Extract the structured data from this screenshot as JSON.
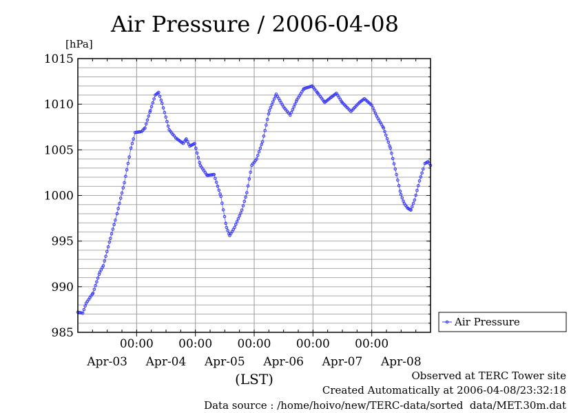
{
  "chart_data": {
    "type": "line",
    "title": "Air Pressure / 2006-04-08",
    "ylabel": "[hPa]",
    "xlabel": "(LST)",
    "ylim": [
      985,
      1015
    ],
    "yticks": [
      985,
      990,
      995,
      1000,
      1005,
      1010,
      1015
    ],
    "ytick_labels": [
      "985",
      "990",
      "995",
      "1000",
      "1005",
      "1010",
      "1015"
    ],
    "xlim_hours": [
      0,
      144
    ],
    "x_time_ticks": [
      {
        "hour": 24,
        "label": "00:00"
      },
      {
        "hour": 48,
        "label": "00:00"
      },
      {
        "hour": 72,
        "label": "00:00"
      },
      {
        "hour": 96,
        "label": "00:00"
      },
      {
        "hour": 120,
        "label": "00:00"
      }
    ],
    "x_day_labels": [
      {
        "hour": 12,
        "label": "Apr-03"
      },
      {
        "hour": 36,
        "label": "Apr-04"
      },
      {
        "hour": 60,
        "label": "Apr-05"
      },
      {
        "hour": 84,
        "label": "Apr-06"
      },
      {
        "hour": 108,
        "label": "Apr-07"
      },
      {
        "hour": 132,
        "label": "Apr-08"
      }
    ],
    "grid": true,
    "legend_position": "right",
    "series": [
      {
        "name": "Air Pressure",
        "color": "#3333ff",
        "x_hours": [
          0,
          2,
          3.4,
          6.2,
          9,
          10.4,
          13.3,
          16,
          19,
          21.7,
          23.4,
          26,
          27.4,
          29.6,
          31.6,
          33,
          34.4,
          37.3,
          40,
          43,
          44.3,
          45.7,
          47.7,
          50,
          52.8,
          55.6,
          58.4,
          60.7,
          62,
          64,
          67,
          69,
          71,
          73,
          75.4,
          78.2,
          81,
          84,
          86.7,
          89.5,
          92.3,
          95.7,
          98,
          100.8,
          103.6,
          105.6,
          107.9,
          111.5,
          115,
          117,
          120,
          122,
          124.8,
          127.6,
          129.6,
          131.9,
          133.3,
          134.7,
          136,
          137.5,
          139.5,
          141.7,
          143,
          144
        ],
        "values": [
          987.2,
          987.1,
          988.2,
          989.3,
          991.6,
          992.3,
          995.3,
          998.0,
          1001.4,
          1005.2,
          1006.9,
          1007.0,
          1007.4,
          1009.3,
          1011.0,
          1011.3,
          1010.1,
          1007.2,
          1006.3,
          1005.7,
          1006.2,
          1005.4,
          1005.7,
          1003.3,
          1002.2,
          1002.3,
          999.9,
          996.5,
          995.6,
          996.5,
          998.4,
          1000.3,
          1003.3,
          1004.0,
          1005.9,
          1009.3,
          1011.1,
          1009.7,
          1008.8,
          1010.5,
          1011.7,
          1012.0,
          1011.2,
          1010.2,
          1010.8,
          1011.2,
          1010.2,
          1009.2,
          1010.2,
          1010.6,
          1009.9,
          1008.7,
          1007.4,
          1005.2,
          1002.9,
          1000.1,
          999.1,
          998.6,
          998.4,
          999.5,
          1001.6,
          1003.5,
          1003.7,
          1003.3
        ]
      }
    ]
  },
  "footer": {
    "observed": "Observed at TERC Tower site",
    "created": "Created Automatically at 2006-04-08/23:32:18",
    "source": "Data source : /home/hoivo/new/TERC-data/sorted  data/MET.30m.dat"
  }
}
